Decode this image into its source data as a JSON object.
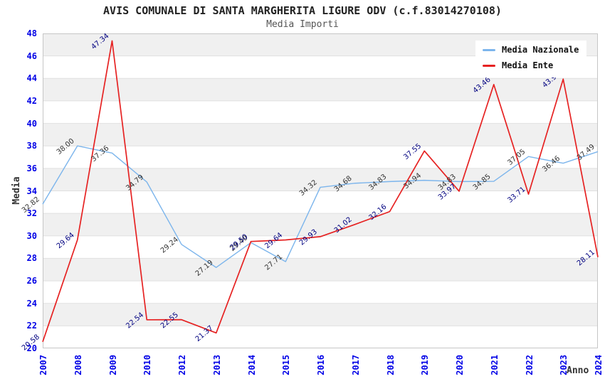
{
  "title": "AVIS COMUNALE DI SANTA MARGHERITA LIGURE ODV (c.f.83014270108)",
  "subtitle": "Media Importi",
  "chart_data": {
    "type": "line",
    "title": "AVIS COMUNALE DI SANTA MARGHERITA LIGURE ODV (c.f.83014270108)",
    "subtitle": "Media Importi",
    "xlabel": "Anno",
    "ylabel": "Media",
    "categories": [
      "2007",
      "2008",
      "2009",
      "2010",
      "2012",
      "2013",
      "2014",
      "2015",
      "2016",
      "2017",
      "2018",
      "2019",
      "2020",
      "2021",
      "2022",
      "2023",
      "2024"
    ],
    "series": [
      {
        "name": "Media Nazionale",
        "color": "#7cb5ec",
        "label_color": "#333333",
        "line_width": 1.4,
        "values": [
          32.82,
          38.0,
          37.36,
          34.79,
          29.24,
          27.19,
          29.4,
          27.71,
          34.32,
          34.68,
          34.83,
          34.94,
          34.83,
          34.85,
          37.05,
          36.46,
          37.49
        ]
      },
      {
        "name": "Media Ente",
        "color": "#e62222",
        "label_color": "#000080",
        "line_width": 1.7,
        "values": [
          20.58,
          29.64,
          47.34,
          22.54,
          22.55,
          21.37,
          29.5,
          29.64,
          29.93,
          31.02,
          32.16,
          37.55,
          33.97,
          43.46,
          33.71,
          43.94,
          28.11
        ]
      }
    ],
    "ylim": [
      20,
      48
    ],
    "ytick_step": 2,
    "yticks": [
      20,
      22,
      24,
      26,
      28,
      30,
      32,
      34,
      36,
      38,
      40,
      42,
      44,
      46,
      48
    ],
    "grid": true,
    "legend_position": "top-right",
    "band_colors": [
      "#f0f0f0",
      "#ffffff"
    ]
  },
  "colors": {
    "axis_tick": "#0000e6",
    "gridline": "#e0e0e0",
    "plot_border": "#c6c6c6",
    "title": "#222222",
    "subtitle": "#555555",
    "axis_title": "#333333"
  }
}
